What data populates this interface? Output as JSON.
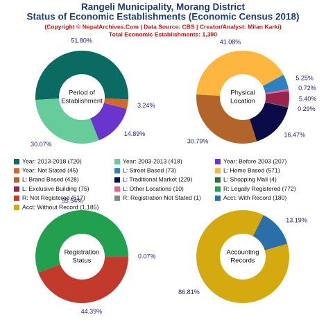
{
  "header": {
    "title": [
      "Rangeli Municipality, Morang District",
      "Status of Economic Establishments (Economic Census 2018)"
    ],
    "subtitle": "(Copyright © NepalArchives.Com | Data Source: CBS | Creator/Analyst: Milan Karki)",
    "total": "Total Economic Establishments: 1,390"
  },
  "chart_data": [
    {
      "type": "pie",
      "center_label": [
        "Period of",
        "Establishment"
      ],
      "series": [
        {
          "name": "Year: 2013-2018 (720)",
          "color": "#0b6b62",
          "values": [
            51.8
          ],
          "value_labels": [
            "51.80%"
          ]
        },
        {
          "name": "Year: 2003-2013 (418)",
          "color": "#66cc99",
          "values": [
            30.07
          ],
          "value_labels": [
            "30.07%"
          ]
        },
        {
          "name": "Year: Before 2003 (207)",
          "color": "#6a35cc",
          "values": [
            14.89
          ],
          "value_labels": [
            "14.89%"
          ]
        },
        {
          "name": "Year: Not Stated (45)",
          "color": "#d0692b",
          "values": [
            3.24
          ],
          "value_labels": [
            "3.24%"
          ]
        }
      ]
    },
    {
      "type": "pie",
      "center_label": [
        "Physical",
        "Location"
      ],
      "series": [
        {
          "name": "L: Street Based (73)",
          "color": "#2e80c2",
          "values": [
            5.25
          ],
          "value_labels": [
            "5.25%"
          ]
        },
        {
          "name": "L: Home Based (571)",
          "color": "#fdb63f",
          "values": [
            41.08
          ],
          "value_labels": [
            "41.08%"
          ]
        },
        {
          "name": "L: Brand Based (428)",
          "color": "#b3642b",
          "values": [
            30.79
          ],
          "value_labels": [
            "30.79%"
          ]
        },
        {
          "name": "L: Traditional Market (229)",
          "color": "#0b0b48",
          "values": [
            16.47
          ],
          "value_labels": [
            "16.47%"
          ]
        },
        {
          "name": "L: Shopping Mall (4)",
          "color": "#2f6b3a",
          "values": [
            0.29
          ],
          "value_labels": [
            "0.29%"
          ]
        },
        {
          "name": "L: Exclusive Building (75)",
          "color": "#9b244f",
          "values": [
            5.4
          ],
          "value_labels": [
            "5.40%"
          ]
        },
        {
          "name": "L: Other Locations (10)",
          "color": "#e0688c",
          "values": [
            0.72
          ],
          "value_labels": [
            "0.72%"
          ]
        }
      ]
    },
    {
      "type": "pie",
      "center_label": [
        "Registration",
        "Status"
      ],
      "series": [
        {
          "name": "R: Legally Registered (772)",
          "color": "#23a04f",
          "values": [
            55.54
          ],
          "value_labels": [
            "55.54%"
          ]
        },
        {
          "name": "R: Not Registered (617)",
          "color": "#c23a2c",
          "values": [
            44.39
          ],
          "value_labels": [
            "44.39%"
          ]
        },
        {
          "name": "R: Registration Not Stated (1)",
          "color": "#888888",
          "values": [
            0.07
          ],
          "value_labels": [
            "0.07%"
          ]
        }
      ]
    },
    {
      "type": "pie",
      "center_label": [
        "Accounting",
        "Records"
      ],
      "series": [
        {
          "name": "Acct: With Record (180)",
          "color": "#2a6fa8",
          "values": [
            13.19
          ],
          "value_labels": [
            "13.19%"
          ]
        },
        {
          "name": "Acct: Without Record (1,185)",
          "color": "#d4aa10",
          "values": [
            86.81
          ],
          "value_labels": [
            "86.81%"
          ]
        }
      ]
    }
  ]
}
